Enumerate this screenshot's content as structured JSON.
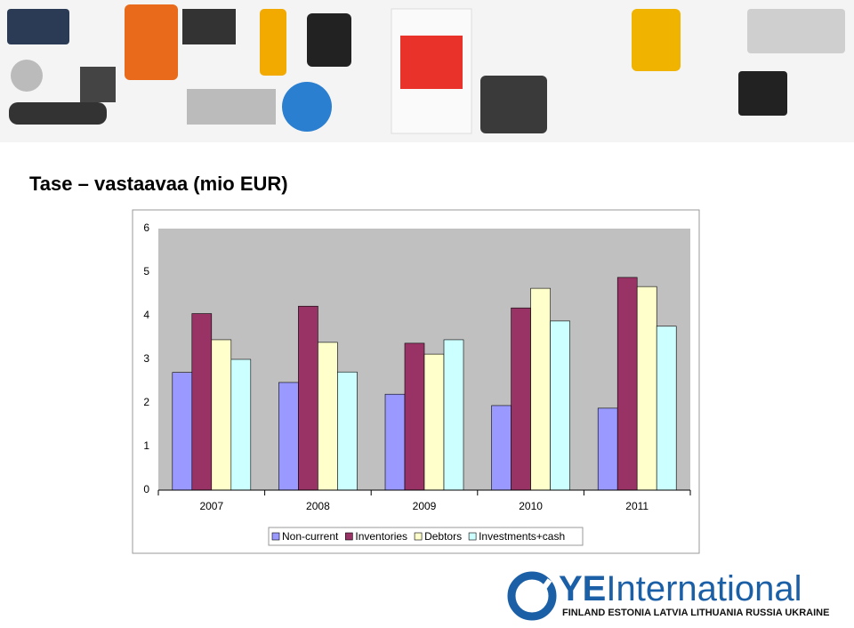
{
  "slide_title": "Tase – vastaavaa  (mio EUR)",
  "chart_data": {
    "type": "bar",
    "categories": [
      "2007",
      "2008",
      "2009",
      "2010",
      "2011"
    ],
    "series": [
      {
        "name": "Non-current",
        "color": "#9999ff",
        "values": [
          2.7,
          2.47,
          2.2,
          1.94,
          1.88
        ]
      },
      {
        "name": "Inventories",
        "color": "#993366",
        "values": [
          4.05,
          4.22,
          3.37,
          4.18,
          4.88
        ]
      },
      {
        "name": "Debtors",
        "color": "#ffffcc",
        "values": [
          3.45,
          3.39,
          3.12,
          4.63,
          4.67
        ]
      },
      {
        "name": "Investments+cash",
        "color": "#ccffff",
        "values": [
          3.0,
          2.71,
          3.45,
          3.88,
          3.76
        ]
      }
    ],
    "ylim": [
      0,
      6
    ],
    "yticks": [
      0,
      1,
      2,
      3,
      4,
      5,
      6
    ],
    "grid": false,
    "legend": "bottom"
  },
  "logo": {
    "brand": "YE",
    "name": "International",
    "countries": "FINLAND ESTONIA LATVIA LITHUANIA RUSSIA UKRAINE"
  }
}
